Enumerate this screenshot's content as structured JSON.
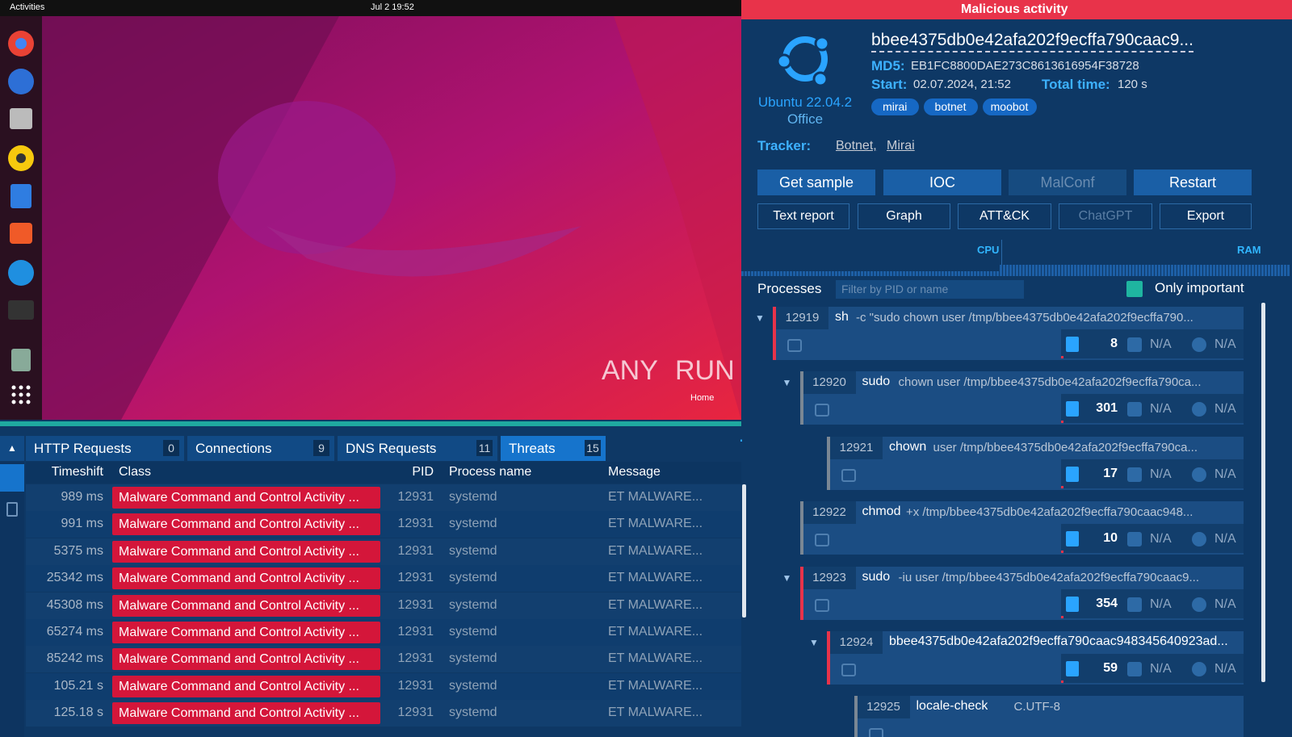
{
  "desktop": {
    "activities": "Activities",
    "clock": "Jul 2  19:52",
    "watermark_left": "ANY",
    "watermark_right": "RUN",
    "home": "Home"
  },
  "verdict": "Malicious activity",
  "task": {
    "hash": "bbee4375db0e42afa202f9ecffa790caac9...",
    "md5_label": "MD5:",
    "md5": "EB1FC8800DAE273C8613616954F38728",
    "start_label": "Start:",
    "start": "02.07.2024, 21:52",
    "total_label": "Total time:",
    "total": "120 s",
    "os": "Ubuntu 22.04.2",
    "os_edition": "Office",
    "tags": [
      "mirai",
      "botnet",
      "moobot"
    ],
    "tracker_label": "Tracker:",
    "trackers": [
      "Botnet,",
      "Mirai"
    ]
  },
  "buttons": {
    "primary": [
      "Get sample",
      "IOC",
      "MalConf",
      "Restart"
    ],
    "secondary": [
      "Text report",
      "Graph",
      "ATT&CK",
      "ChatGPT",
      "Export"
    ]
  },
  "monitor": {
    "cpu": "CPU",
    "ram": "RAM"
  },
  "processes": {
    "title": "Processes",
    "filter_placeholder": "Filter by PID or name",
    "only_important": "Only important",
    "items": [
      {
        "pid": 12919,
        "name": "sh",
        "args": "-c \"sudo chown user /tmp/bbee4375db0e42afa202f9ecffa790...",
        "files": 8,
        "network": "N/A",
        "modules": "N/A"
      },
      {
        "pid": 12920,
        "name": "sudo",
        "args": "chown user /tmp/bbee4375db0e42afa202f9ecffa790ca...",
        "files": 301,
        "network": "N/A",
        "modules": "N/A"
      },
      {
        "pid": 12921,
        "name": "chown",
        "args": "user /tmp/bbee4375db0e42afa202f9ecffa790ca...",
        "files": 17,
        "network": "N/A",
        "modules": "N/A"
      },
      {
        "pid": 12922,
        "name": "chmod",
        "args": "+x /tmp/bbee4375db0e42afa202f9ecffa790caac948...",
        "files": 10,
        "network": "N/A",
        "modules": "N/A"
      },
      {
        "pid": 12923,
        "name": "sudo",
        "args": "-iu user /tmp/bbee4375db0e42afa202f9ecffa790caac9...",
        "files": 354,
        "network": "N/A",
        "modules": "N/A"
      },
      {
        "pid": 12924,
        "name": "bbee4375db0e42afa202f9ecffa790caac948345640923ad...",
        "args": "",
        "files": 59,
        "network": "N/A",
        "modules": "N/A"
      },
      {
        "pid": 12925,
        "name": "locale-check",
        "args": "C.UTF-8"
      }
    ]
  },
  "tabs": [
    {
      "label": "HTTP Requests",
      "count": 0
    },
    {
      "label": "Connections",
      "count": 9
    },
    {
      "label": "DNS Requests",
      "count": 11
    },
    {
      "label": "Threats",
      "count": 15
    }
  ],
  "threats": {
    "columns": [
      "Timeshift",
      "Class",
      "PID",
      "Process name",
      "Message"
    ],
    "rows": [
      [
        "989 ms",
        "Malware Command and Control Activity ...",
        12931,
        "systemd",
        "ET MALWARE..."
      ],
      [
        "991 ms",
        "Malware Command and Control Activity ...",
        12931,
        "systemd",
        "ET MALWARE..."
      ],
      [
        "5375 ms",
        "Malware Command and Control Activity ...",
        12931,
        "systemd",
        "ET MALWARE..."
      ],
      [
        "25342 ms",
        "Malware Command and Control Activity ...",
        12931,
        "systemd",
        "ET MALWARE..."
      ],
      [
        "45308 ms",
        "Malware Command and Control Activity ...",
        12931,
        "systemd",
        "ET MALWARE..."
      ],
      [
        "65274 ms",
        "Malware Command and Control Activity ...",
        12931,
        "systemd",
        "ET MALWARE..."
      ],
      [
        "85242 ms",
        "Malware Command and Control Activity ...",
        12931,
        "systemd",
        "ET MALWARE..."
      ],
      [
        "105.21 s",
        "Malware Command and Control Activity ...",
        12931,
        "systemd",
        "ET MALWARE..."
      ],
      [
        "125.18 s",
        "Malware Command and Control Activity ...",
        12931,
        "systemd",
        "ET MALWARE..."
      ]
    ]
  }
}
